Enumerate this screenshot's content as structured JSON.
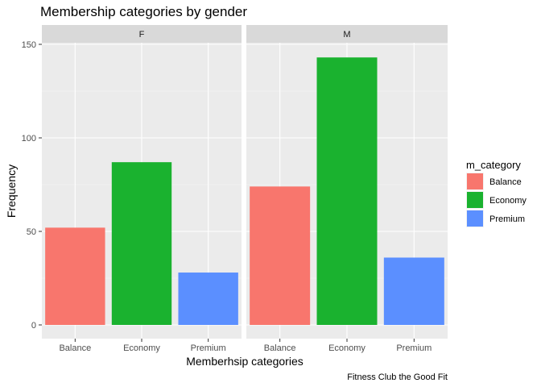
{
  "chart_data": {
    "type": "bar",
    "title": "Membership categories by gender",
    "xlabel": "Memberhsip categories",
    "ylabel": "Frequency",
    "caption": "Fitness Club the Good Fit",
    "ylim": [
      0,
      160
    ],
    "yticks": [
      0,
      50,
      100,
      150
    ],
    "grid": true,
    "legend_position": "right",
    "legend_title": "m_category",
    "categories": [
      "Balance",
      "Economy",
      "Premium"
    ],
    "colors": {
      "Balance": "#F8766D",
      "Economy": "#1AB22F",
      "Premium": "#5B8FFF"
    },
    "facets": [
      {
        "label": "F",
        "values": [
          52,
          87,
          28
        ]
      },
      {
        "label": "M",
        "values": [
          74,
          143,
          36
        ]
      }
    ]
  }
}
